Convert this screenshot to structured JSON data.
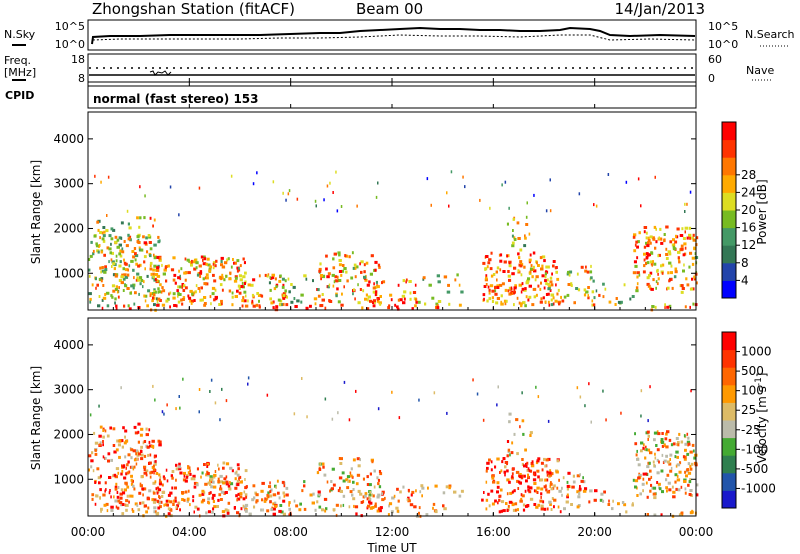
{
  "header": {
    "station": "Zhongshan Station (fitACF)",
    "beam": "Beam 00",
    "date": "14/Jan/2013"
  },
  "noise_panel": {
    "left_label": "N.Sky",
    "left_ticks": [
      "10^5",
      "10^0"
    ],
    "right_label": "N.Search",
    "right_ticks": [
      "10^5",
      "10^0"
    ]
  },
  "freq_panel": {
    "left_label_1": "Freq.",
    "left_label_2": "[MHz]",
    "left_ticks": [
      "18",
      "8"
    ],
    "right_label": "Nave",
    "right_ticks": [
      "60",
      "0"
    ]
  },
  "cpid": {
    "label": "CPID",
    "text": "normal (fast stereo) 153"
  },
  "colors": {
    "power": [
      "#0000ff",
      "#2244aa",
      "#337755",
      "#449966",
      "#77bb22",
      "#dddd22",
      "#ffaa00",
      "#ff7700",
      "#ff3300",
      "#ff0000"
    ],
    "velocity": [
      "#1a1acc",
      "#2255aa",
      "#2f7f4f",
      "#44aa33",
      "#bbbbaa",
      "#ddbb66",
      "#ff9900",
      "#ff6600",
      "#ff3300",
      "#ff0000"
    ]
  },
  "chart_data": [
    {
      "type": "heatmap",
      "title": "",
      "xlabel": "Time UT",
      "ylabel": "Slant Range [km]",
      "x_ticks": [
        "00:00",
        "04:00",
        "08:00",
        "12:00",
        "16:00",
        "20:00",
        "00:00"
      ],
      "y_ticks": [
        "1000",
        "2000",
        "3000",
        "4000"
      ],
      "ylim": [
        180,
        4600
      ],
      "colorbar": {
        "label": "Power [dB]",
        "ticks": [
          "4",
          "8",
          "12",
          "16",
          "20",
          "24",
          "28"
        ],
        "range": [
          0,
          30
        ]
      }
    },
    {
      "type": "heatmap",
      "title": "",
      "xlabel": "Time UT",
      "ylabel": "Slant Range [km]",
      "x_ticks": [
        "00:00",
        "04:00",
        "08:00",
        "12:00",
        "16:00",
        "20:00",
        "00:00"
      ],
      "y_ticks": [
        "1000",
        "2000",
        "3000",
        "4000"
      ],
      "ylim": [
        180,
        4600
      ],
      "colorbar": {
        "label": "Velocity [m s",
        "label_sup": "-1",
        "label_end": "]",
        "ticks": [
          "1000",
          "500",
          "100",
          "25",
          "-25",
          "-100",
          "-500",
          "-1000"
        ]
      }
    }
  ]
}
